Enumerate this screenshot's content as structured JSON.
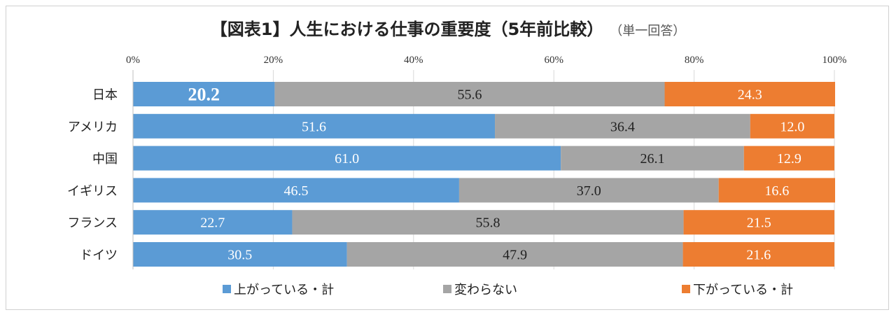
{
  "chart_data": {
    "type": "bar",
    "orientation": "horizontal",
    "stacked": "100%",
    "title": "【図表1】人生における仕事の重要度（5年前比較）",
    "subtitle": "（単一回答）",
    "categories": [
      "日本",
      "アメリカ",
      "中国",
      "イギリス",
      "フランス",
      "ドイツ"
    ],
    "series": [
      {
        "name": "上がっている・計",
        "color": "#5b9bd5",
        "values": [
          20.2,
          51.6,
          61.0,
          46.5,
          22.7,
          30.5
        ]
      },
      {
        "name": "変わらない",
        "color": "#a5a5a5",
        "values": [
          55.6,
          36.4,
          26.1,
          37.0,
          55.8,
          47.9
        ]
      },
      {
        "name": "下がっている・計",
        "color": "#ed7d31",
        "values": [
          24.3,
          12.0,
          12.9,
          16.6,
          21.5,
          21.6
        ]
      }
    ],
    "xticks": [
      "0%",
      "20%",
      "40%",
      "60%",
      "80%",
      "100%"
    ],
    "xlim": [
      0,
      100
    ],
    "grid": true,
    "legend": "bottom"
  }
}
